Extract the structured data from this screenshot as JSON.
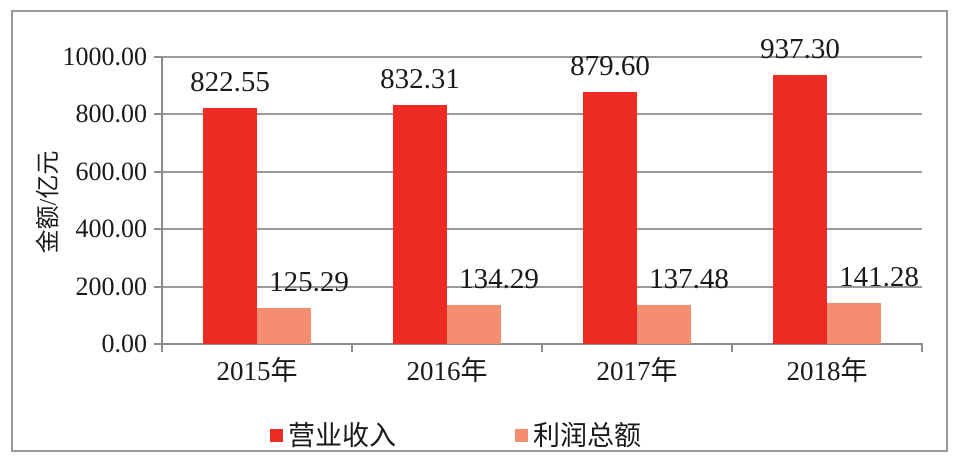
{
  "frame": {
    "border_color": "#999999",
    "background_color": "#ffffff"
  },
  "chart_data": {
    "type": "bar",
    "title": "",
    "xlabel": "",
    "ylabel": "金额/亿元",
    "categories": [
      "2015年",
      "2016年",
      "2017年",
      "2018年"
    ],
    "series": [
      {
        "name": "营业收入",
        "color": "#ed2a24",
        "values": [
          822.55,
          832.31,
          879.6,
          937.3
        ],
        "labels": [
          "822.55",
          "832.31",
          "879.60",
          "937.30"
        ]
      },
      {
        "name": "利润总额",
        "color": "#f68c70",
        "values": [
          125.29,
          134.29,
          137.48,
          141.28
        ],
        "labels": [
          "125.29",
          "134.29",
          "137.48",
          "141.28"
        ]
      }
    ],
    "ylim": [
      0,
      1000
    ],
    "ytick_step": 200,
    "yticks": [
      "0.00",
      "200.00",
      "400.00",
      "600.00",
      "800.00",
      "1000.00"
    ],
    "grid": "horizontal",
    "legend_position": "bottom",
    "grid_color": "#999999",
    "axis_color": "#8c8c8c",
    "text_color": "#1a1a1a"
  }
}
